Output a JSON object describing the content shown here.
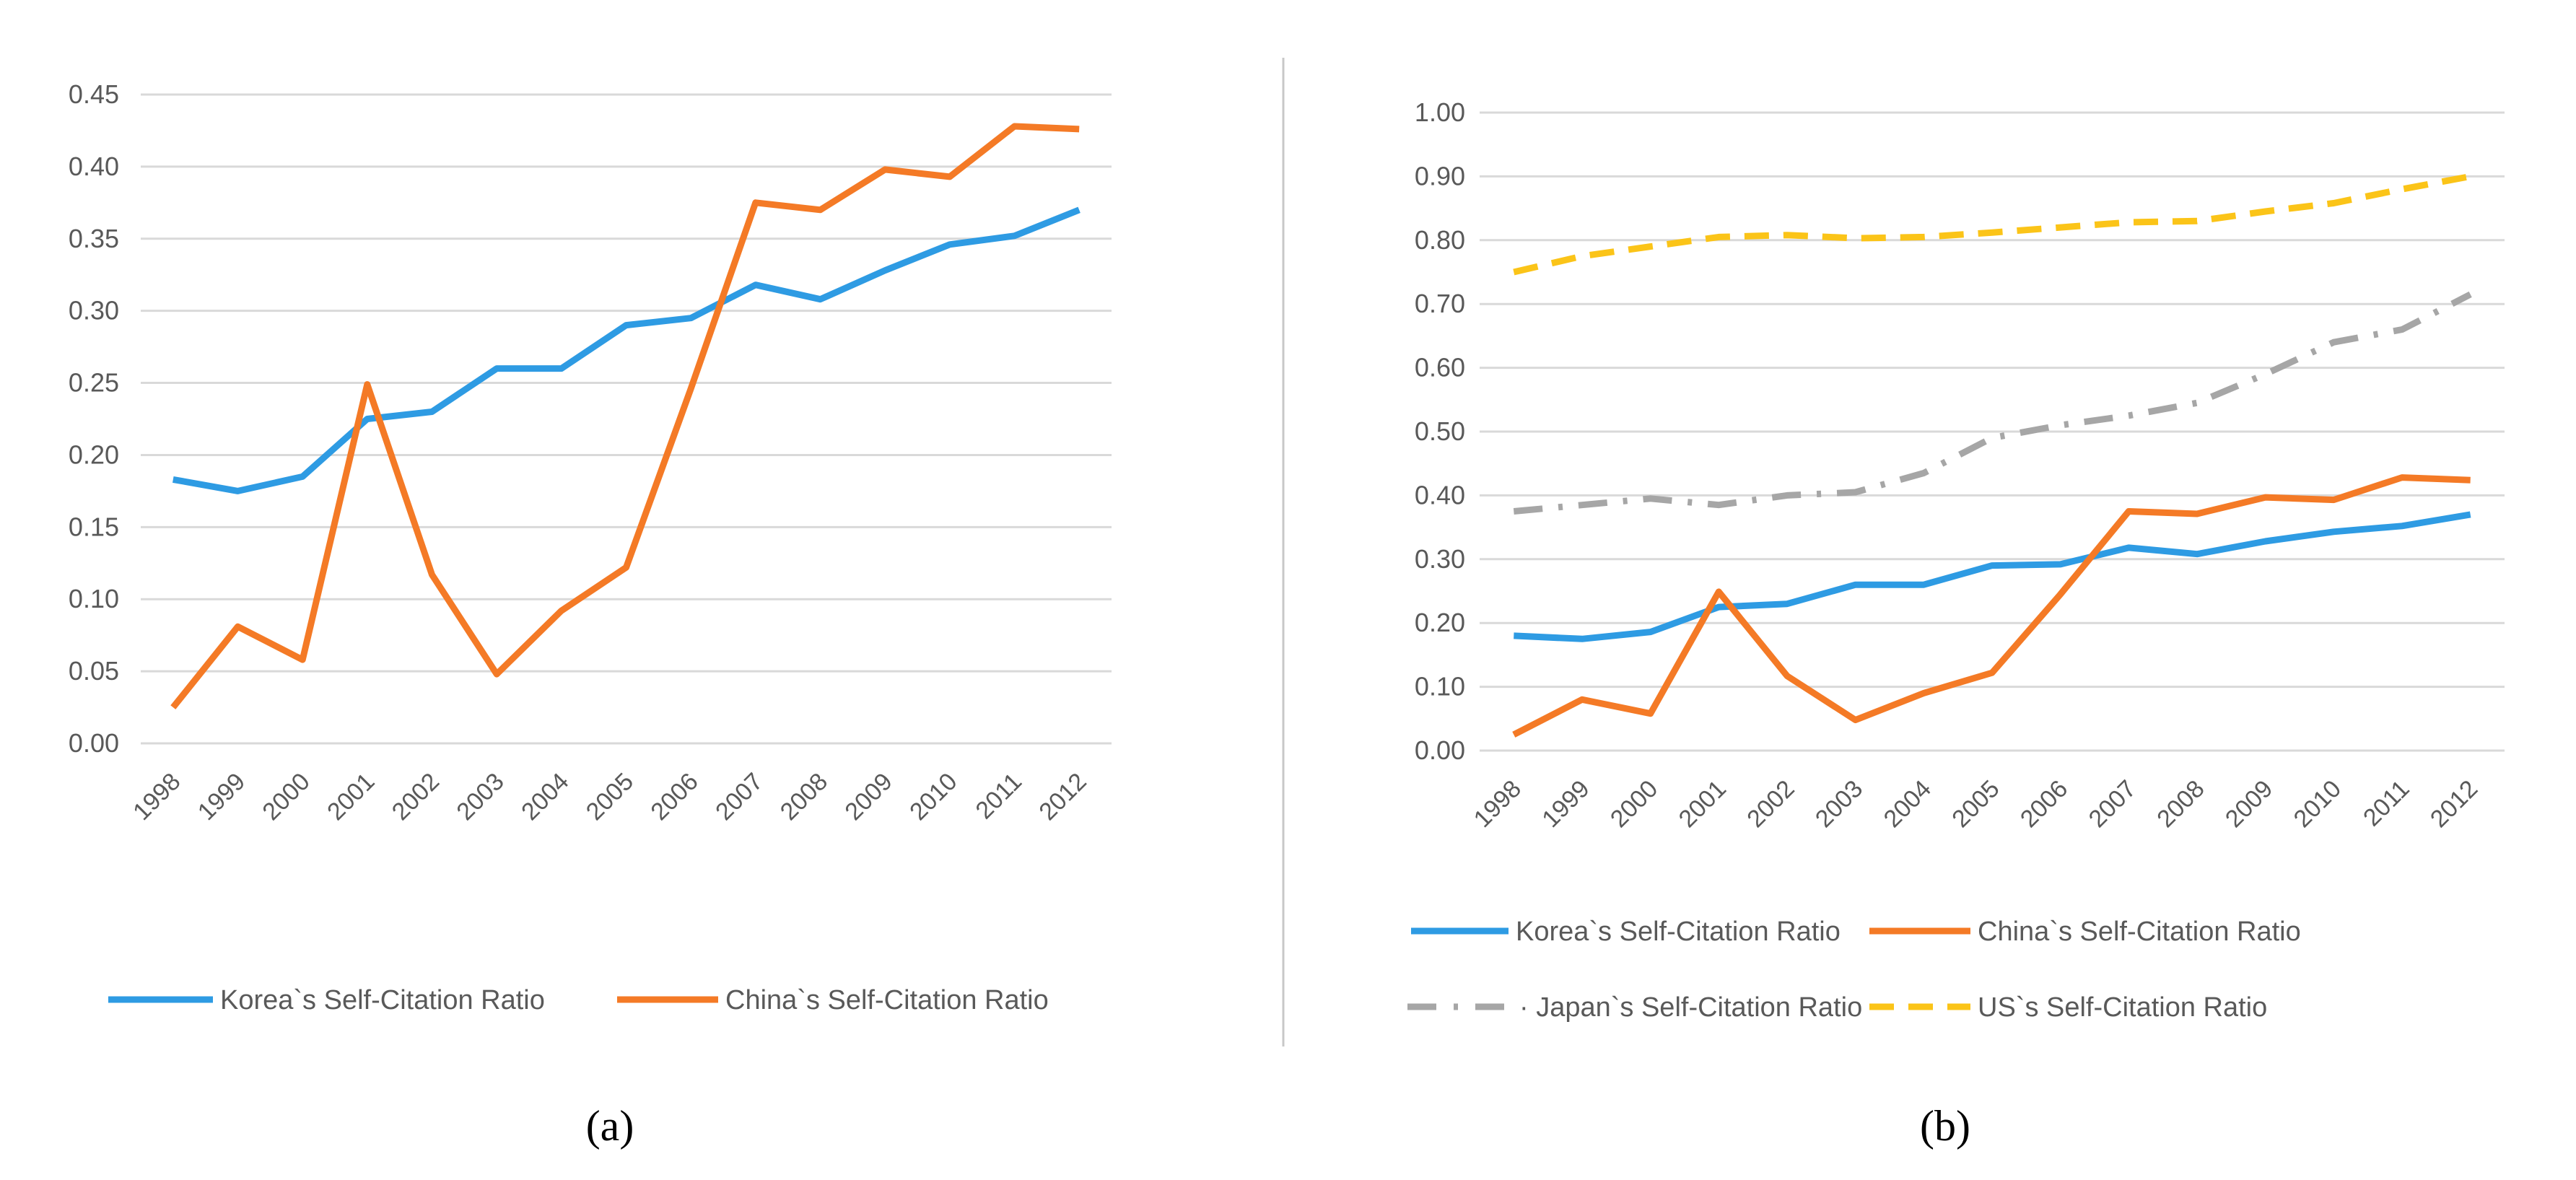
{
  "figure": {
    "caption_a": "(a)",
    "caption_b": "(b)"
  },
  "colors": {
    "korea": "#2e9be3",
    "china": "#f47a26",
    "japan": "#a6a6a6",
    "us": "#fbc418",
    "grid": "#d9d9d9",
    "text": "#595959",
    "divider": "#c8c8c8"
  },
  "chart_data": [
    {
      "type": "line",
      "panel": "a",
      "title": "",
      "xlabel": "",
      "ylabel": "",
      "ylim": [
        0,
        0.45
      ],
      "y_ticks": [
        "0.00",
        "0.05",
        "0.10",
        "0.15",
        "0.20",
        "0.25",
        "0.30",
        "0.35",
        "0.40",
        "0.45"
      ],
      "y_tick_values": [
        0,
        0.05,
        0.1,
        0.15,
        0.2,
        0.25,
        0.3,
        0.35,
        0.4,
        0.45
      ],
      "grid": true,
      "legend_position": "bottom",
      "categories": [
        "1998",
        "1999",
        "2000",
        "2001",
        "2002",
        "2003",
        "2004",
        "2005",
        "2006",
        "2007",
        "2008",
        "2009",
        "2010",
        "2011",
        "2012"
      ],
      "series": [
        {
          "name": "Korea`s Self-Citation Ratio",
          "color_key": "korea",
          "dash": "solid",
          "values": [
            0.183,
            0.175,
            0.185,
            0.225,
            0.23,
            0.26,
            0.26,
            0.29,
            0.295,
            0.318,
            0.308,
            0.328,
            0.346,
            0.352,
            0.37
          ]
        },
        {
          "name": "China`s Self-Citation Ratio",
          "color_key": "china",
          "dash": "solid",
          "values": [
            0.025,
            0.081,
            0.058,
            0.249,
            0.117,
            0.048,
            0.092,
            0.122,
            0.246,
            0.375,
            0.37,
            0.398,
            0.393,
            0.428,
            0.426
          ]
        }
      ]
    },
    {
      "type": "line",
      "panel": "b",
      "title": "",
      "xlabel": "",
      "ylabel": "",
      "ylim": [
        0,
        1.0
      ],
      "y_ticks": [
        "0.00",
        "0.10",
        "0.20",
        "0.30",
        "0.40",
        "0.50",
        "0.60",
        "0.70",
        "0.80",
        "0.90",
        "1.00"
      ],
      "y_tick_values": [
        0,
        0.1,
        0.2,
        0.3,
        0.4,
        0.5,
        0.6,
        0.7,
        0.8,
        0.9,
        1.0
      ],
      "grid": true,
      "legend_position": "bottom",
      "categories": [
        "1998",
        "1999",
        "2000",
        "2001",
        "2002",
        "2003",
        "2004",
        "2005",
        "2006",
        "2007",
        "2008",
        "2009",
        "2010",
        "2011",
        "2012"
      ],
      "series": [
        {
          "name": "Korea`s Self-Citation Ratio",
          "color_key": "korea",
          "dash": "solid",
          "values": [
            0.18,
            0.175,
            0.186,
            0.225,
            0.23,
            0.26,
            0.26,
            0.29,
            0.292,
            0.318,
            0.308,
            0.328,
            0.343,
            0.352,
            0.37
          ]
        },
        {
          "name": "China`s Self-Citation Ratio",
          "color_key": "china",
          "dash": "solid",
          "values": [
            0.025,
            0.08,
            0.058,
            0.249,
            0.117,
            0.048,
            0.09,
            0.122,
            0.245,
            0.375,
            0.371,
            0.397,
            0.393,
            0.428,
            0.424
          ]
        },
        {
          "name": "Japan`s Self-Citation Ratio",
          "color_key": "japan",
          "dash": "dashdot",
          "values": [
            0.375,
            0.385,
            0.395,
            0.385,
            0.4,
            0.405,
            0.435,
            0.49,
            0.51,
            0.525,
            0.545,
            0.59,
            0.64,
            0.66,
            0.715
          ]
        },
        {
          "name": "US`s Self-Citation Ratio",
          "color_key": "us",
          "dash": "dashed",
          "values": [
            0.75,
            0.775,
            0.79,
            0.805,
            0.808,
            0.803,
            0.805,
            0.812,
            0.82,
            0.828,
            0.83,
            0.845,
            0.858,
            0.88,
            0.9
          ]
        }
      ]
    }
  ]
}
